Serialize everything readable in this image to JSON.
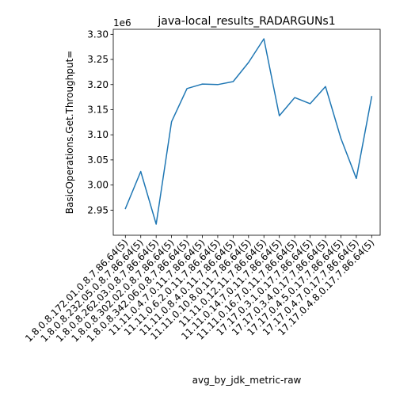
{
  "chart_data": {
    "type": "line",
    "title": "java-local_results_RADARGUNs1",
    "xlabel": "avg_by_jdk_metric-raw",
    "ylabel": "BasicOperations.Get.Throughput=",
    "y_offset_label": "1e6",
    "y_scale": 1000000,
    "ylim": [
      2.9,
      3.31
    ],
    "y_ticks": [
      2.95,
      3.0,
      3.05,
      3.1,
      3.15,
      3.2,
      3.25,
      3.3
    ],
    "y_tick_labels": [
      "2.95",
      "3.00",
      "3.05",
      "3.10",
      "3.15",
      "3.20",
      "3.25",
      "3.30"
    ],
    "grid": false,
    "legend": "none",
    "categories": [
      "1.8.0.8.172.01.0.8.7.86.64(5)",
      "1.8.0.8.232.05.0.8.7.86.64(5)",
      "1.8.0.8.262.03.0.8.7.86.64(5)",
      "1.8.0.8.302.02.0.8.7.86.64(5)",
      "1.8.0.8.342.06.0.8.7.86.64(5)",
      "11.11.0.4.7.0.11.7.86.64(5)",
      "11.11.0.6.2.0.11.7.86.64(5)",
      "11.11.0.8.4.0.11.7.86.64(5)",
      "11.11.0.10.8.0.11.7.86.64(5)",
      "11.11.0.12.11.7.86.64(5)",
      "11.11.0.14.7.0.11.7.86.64(5)",
      "11.11.0.16.7.0.11.7.86.64(5)",
      "17.17.0.3.1.0.17.7.86.64(5)",
      "17.17.0.3.4.0.17.7.86.64(5)",
      "17.17.0.4.5.0.17.7.86.64(5)",
      "17.17.0.4.7.0.17.7.86.64(5)",
      "17.17.0.4.8.0.17.7.86.64(5)"
    ],
    "series": [
      {
        "values": [
          2.953,
          3.027,
          2.922,
          3.126,
          3.192,
          3.201,
          3.2,
          3.206,
          3.244,
          3.291,
          3.138,
          3.174,
          3.162,
          3.196,
          3.093,
          3.013,
          3.176
        ]
      }
    ],
    "line_color": "#1f77b4"
  }
}
